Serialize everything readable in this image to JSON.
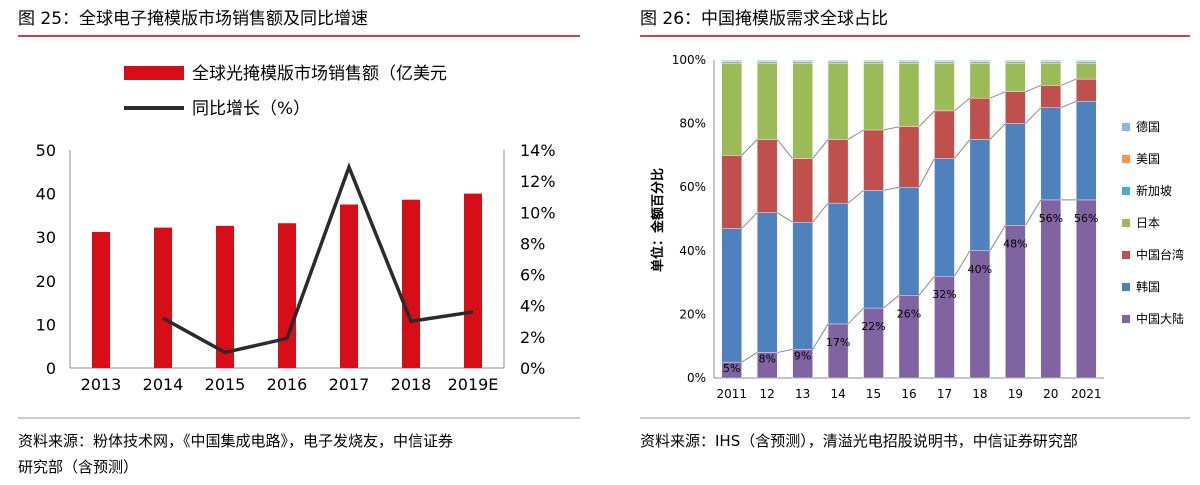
{
  "left_panel": {
    "title": "图 25：全球电子掩模版市场销售额及同比增速",
    "source_line1": "资料来源：粉体技术网，《中国集成电路》，电子发烧友，中信证券",
    "source_line2": "研究部（含预测）"
  },
  "right_panel": {
    "title": "图 26：中国掩模版需求全球占比",
    "source": "资料来源：IHS（含预测），清溢光电招股说明书，中信证券研究部"
  },
  "colors": {
    "title_rule": "#c0000b",
    "bar": "#d70d18",
    "line": "#2b2b2b",
    "germany": "#8eb4e3",
    "usa": "#f79646",
    "singapore": "#4bacc6",
    "japan": "#9bbb59",
    "taiwan": "#c0504d",
    "korea": "#4f81bd",
    "mainland": "#8064a2"
  },
  "chart_data": [
    {
      "type": "bar",
      "title": "全球电子掩模版市场销售额及同比增速",
      "categories": [
        "2013",
        "2014",
        "2015",
        "2016",
        "2017",
        "2018",
        "2019E"
      ],
      "series": [
        {
          "name": "全球光掩模版市场销售额（亿美元",
          "kind": "bar",
          "axis": "left",
          "values": [
            31.2,
            32.2,
            32.6,
            33.2,
            37.5,
            38.6,
            40.0
          ]
        },
        {
          "name": "同比增长（%）",
          "kind": "line",
          "axis": "right",
          "values": [
            null,
            3.2,
            1.0,
            1.9,
            12.9,
            3.0,
            3.6
          ]
        }
      ],
      "y_left": {
        "ylim": [
          0,
          50
        ],
        "ticks": [
          "0",
          "10",
          "20",
          "30",
          "40",
          "50"
        ]
      },
      "y_right": {
        "ylim": [
          0,
          14
        ],
        "ticks": [
          "0%",
          "2%",
          "4%",
          "6%",
          "8%",
          "10%",
          "12%",
          "14%"
        ]
      },
      "legend_position": "top"
    },
    {
      "type": "bar",
      "stacked": true,
      "title": "中国掩模版需求全球占比",
      "ylabel": "单位：金额百分比",
      "categories": [
        "2011",
        "12",
        "13",
        "14",
        "15",
        "16",
        "17",
        "18",
        "19",
        "20",
        "2021"
      ],
      "y_ticks": [
        "0%",
        "20%",
        "40%",
        "60%",
        "80%",
        "100%"
      ],
      "ylim": [
        0,
        100
      ],
      "legend_position": "right",
      "series": [
        {
          "name": "中国大陆",
          "color_key": "mainland",
          "values": [
            5,
            8,
            9,
            17,
            22,
            26,
            32,
            40,
            48,
            56,
            56
          ]
        },
        {
          "name": "韩国",
          "color_key": "korea",
          "values": [
            42,
            44,
            40,
            38,
            37,
            34,
            37,
            35,
            32,
            29,
            31
          ]
        },
        {
          "name": "中国台湾",
          "color_key": "taiwan",
          "values": [
            23,
            23,
            20,
            20,
            19,
            19,
            15,
            13,
            10,
            7,
            7
          ]
        },
        {
          "name": "日本",
          "color_key": "japan",
          "values": [
            29,
            24,
            30,
            24,
            21,
            20,
            15,
            11,
            9,
            7,
            5
          ]
        },
        {
          "name": "新加坡",
          "color_key": "singapore",
          "values": [
            0.4,
            0.4,
            0.4,
            0.4,
            0.4,
            0.4,
            0.4,
            0.4,
            0.4,
            0.4,
            0.4
          ]
        },
        {
          "name": "美国",
          "color_key": "usa",
          "values": [
            0.3,
            0.3,
            0.3,
            0.3,
            0.3,
            0.3,
            0.3,
            0.3,
            0.3,
            0.3,
            0.3
          ]
        },
        {
          "name": "德国",
          "color_key": "germany",
          "values": [
            0.3,
            0.3,
            0.3,
            0.3,
            0.3,
            0.3,
            0.3,
            0.3,
            0.3,
            0.3,
            0.3
          ]
        }
      ],
      "legend_order": [
        "德国",
        "美国",
        "新加坡",
        "日本",
        "中国台湾",
        "韩国",
        "中国大陆"
      ],
      "data_labels": [
        "5%",
        "8%",
        "9%",
        "17%",
        "22%",
        "26%",
        "32%",
        "40%",
        "48%",
        "56%",
        "56%"
      ]
    }
  ]
}
